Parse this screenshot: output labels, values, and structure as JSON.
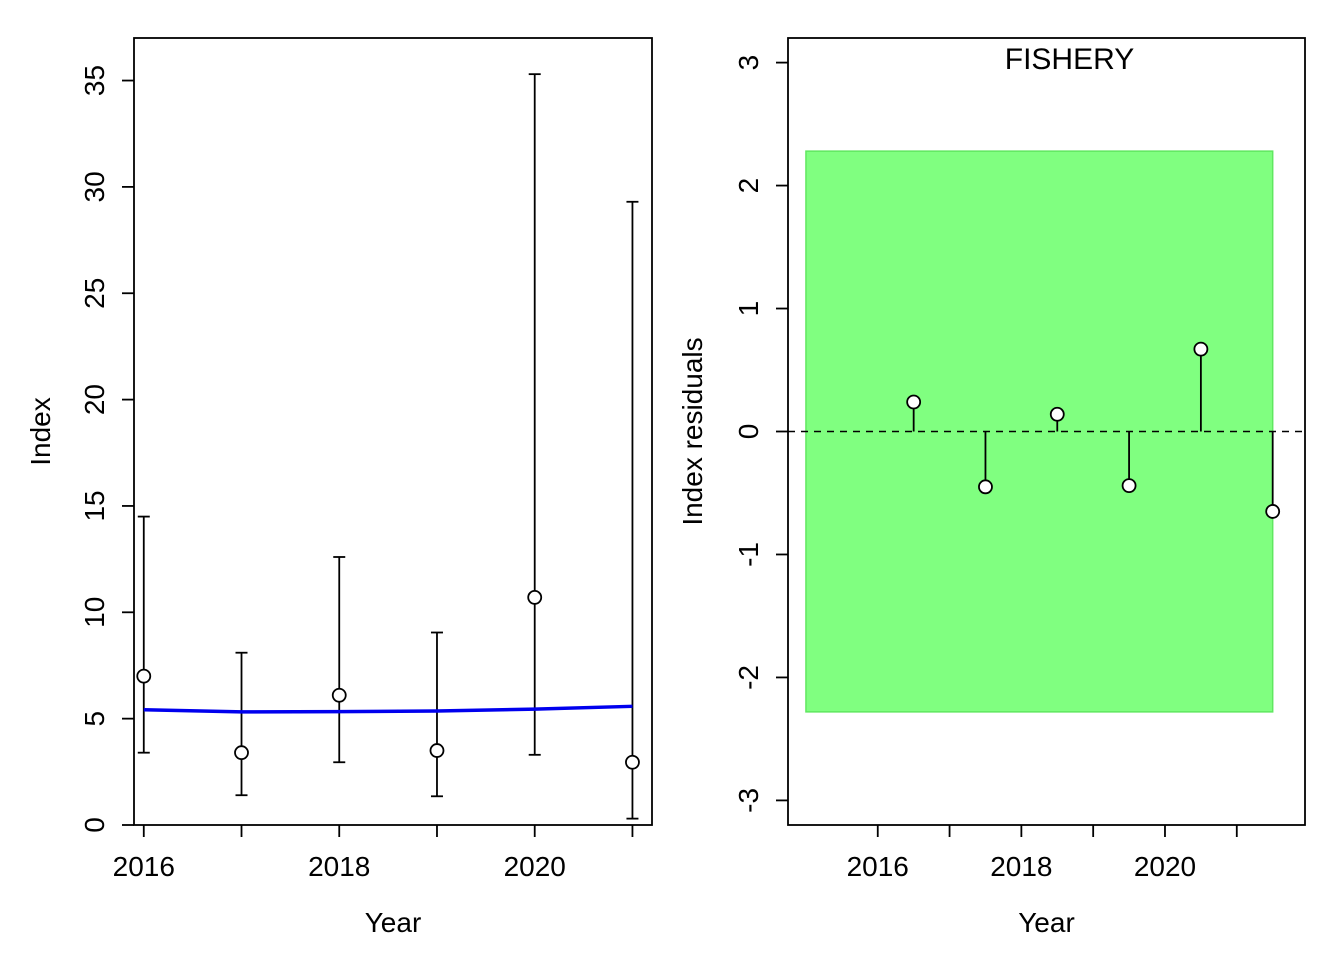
{
  "chart_data": [
    {
      "type": "scatter",
      "title": "",
      "xlabel": "Year",
      "ylabel": "Index",
      "xlim": [
        2015.9,
        2021.2
      ],
      "ylim": [
        0,
        37
      ],
      "x_ticks": [
        2016,
        2017,
        2018,
        2019,
        2020,
        2021
      ],
      "x_tick_labels": [
        "2016",
        "2018",
        "2020"
      ],
      "x_tick_label_values": [
        2016,
        2018,
        2020
      ],
      "y_ticks": [
        0,
        5,
        10,
        15,
        20,
        25,
        30,
        35
      ],
      "y_tick_labels": [
        "0",
        "5",
        "10",
        "15",
        "20",
        "25",
        "30",
        "35"
      ],
      "grid": false,
      "series": [
        {
          "kind": "points-with-error-bars",
          "color": "#000000",
          "x": [
            2016,
            2017,
            2018,
            2019,
            2020,
            2021
          ],
          "y": [
            7.0,
            3.4,
            6.1,
            3.5,
            10.7,
            2.95
          ],
          "lower": [
            3.4,
            1.4,
            2.95,
            1.35,
            3.3,
            0.3
          ],
          "upper": [
            14.5,
            8.1,
            12.6,
            9.05,
            35.3,
            29.3
          ]
        },
        {
          "kind": "line",
          "color": "#0000ee",
          "x": [
            2016,
            2017,
            2018,
            2019,
            2020,
            2021
          ],
          "y": [
            5.42,
            5.32,
            5.33,
            5.36,
            5.45,
            5.58
          ]
        }
      ]
    },
    {
      "type": "scatter",
      "title": "FISHERY",
      "xlabel": "Year",
      "ylabel": "Index residuals",
      "xlim": [
        2014.75,
        2021.95
      ],
      "ylim": [
        -3.2,
        3.2
      ],
      "x_ticks": [
        2016,
        2017,
        2018,
        2019,
        2020,
        2021
      ],
      "x_tick_labels": [
        "2016",
        "2018",
        "2020"
      ],
      "x_tick_label_values": [
        2016,
        2018,
        2020
      ],
      "y_ticks": [
        -3,
        -2,
        -1,
        0,
        1,
        2,
        3
      ],
      "y_tick_labels": [
        "-3",
        "-2",
        "-1",
        "0",
        "1",
        "2",
        "3"
      ],
      "grid": false,
      "band": {
        "x0": 2015.0,
        "x1": 2021.5,
        "y0": -2.28,
        "y1": 2.28,
        "color": "#80ff80",
        "border": "#60e860"
      },
      "reference_line": {
        "y": 0,
        "style": "dashed"
      },
      "series": [
        {
          "kind": "residual-stems",
          "color": "#000000",
          "x": [
            2016.5,
            2017.5,
            2018.5,
            2019.5,
            2020.5,
            2021.5
          ],
          "y": [
            0.24,
            -0.45,
            0.14,
            -0.44,
            0.67,
            -0.65
          ]
        }
      ]
    }
  ]
}
